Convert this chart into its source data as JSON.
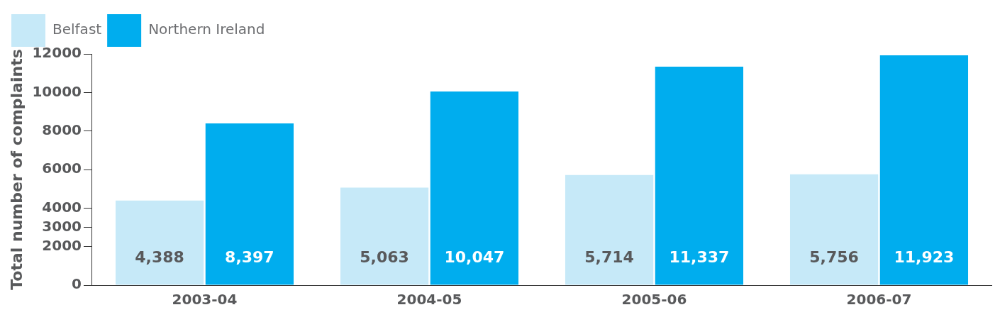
{
  "chart_data": {
    "type": "bar",
    "ylabel": "Total number of complaints",
    "categories": [
      "2003-04",
      "2004-05",
      "2005-06",
      "2006-07"
    ],
    "series": [
      {
        "name": "Belfast",
        "color": "#c6e9f8",
        "values": [
          4388,
          5063,
          5714,
          5756
        ],
        "value_labels": [
          "4,388",
          "5,063",
          "5,714",
          "5,756"
        ]
      },
      {
        "name": "Northern Ireland",
        "color": "#00adee",
        "values": [
          8397,
          10047,
          11337,
          11923
        ],
        "value_labels": [
          "8,397",
          "10,047",
          "11,337",
          "11,923"
        ]
      }
    ],
    "ylim": [
      0,
      12000
    ],
    "yticks": [
      0,
      2000,
      3000,
      4000,
      6000,
      8000,
      10000,
      12000
    ],
    "grid": false,
    "legend": "top left"
  }
}
